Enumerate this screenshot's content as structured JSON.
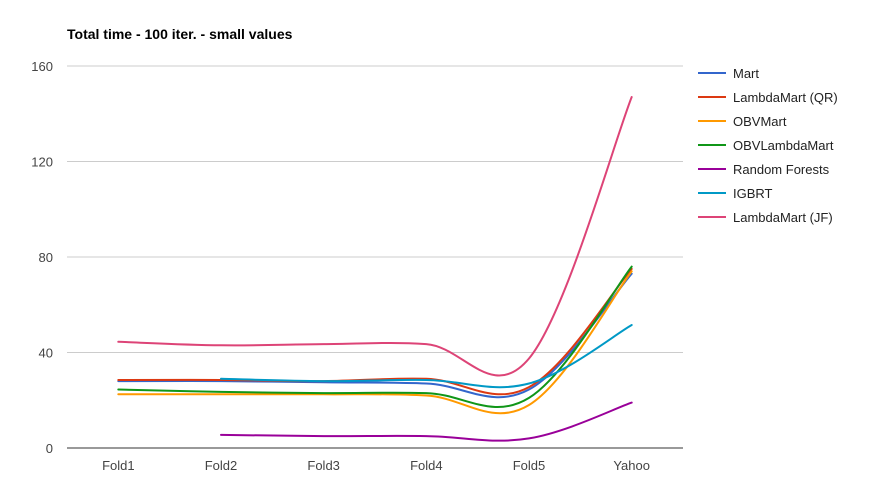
{
  "chart_data": {
    "type": "line",
    "title": "Total time - 100 iter. - small values",
    "xlabel": "",
    "ylabel": "",
    "categories": [
      "Fold1",
      "Fold2",
      "Fold3",
      "Fold4",
      "Fold5",
      "Yahoo"
    ],
    "ylim": [
      0,
      160
    ],
    "yticks": [
      0,
      40,
      80,
      120,
      160
    ],
    "grid": true,
    "legend_position": "right",
    "smooth": true,
    "series": [
      {
        "name": "Mart",
        "color": "#3366cc",
        "values": [
          28,
          28,
          27.5,
          27,
          24.5,
          73
        ]
      },
      {
        "name": "LambdaMart (QR)",
        "color": "#dc3912",
        "values": [
          28.5,
          28.5,
          28,
          29,
          25.5,
          75
        ]
      },
      {
        "name": "OBVMart",
        "color": "#ff9900",
        "values": [
          22.5,
          22.5,
          22.5,
          22,
          18,
          74
        ]
      },
      {
        "name": "OBVLambdaMart",
        "color": "#109618",
        "values": [
          24.5,
          23.5,
          23,
          23,
          21,
          76
        ]
      },
      {
        "name": "Random Forests",
        "color": "#990099",
        "values": [
          null,
          5.5,
          5,
          5,
          4,
          19
        ]
      },
      {
        "name": "IGBRT",
        "color": "#0099c6",
        "values": [
          null,
          29,
          28,
          28.5,
          27,
          51.5
        ]
      },
      {
        "name": "LambdaMart (JF)",
        "color": "#dd4477",
        "values": [
          44.5,
          43,
          43.5,
          43.5,
          37.5,
          147
        ]
      }
    ]
  }
}
